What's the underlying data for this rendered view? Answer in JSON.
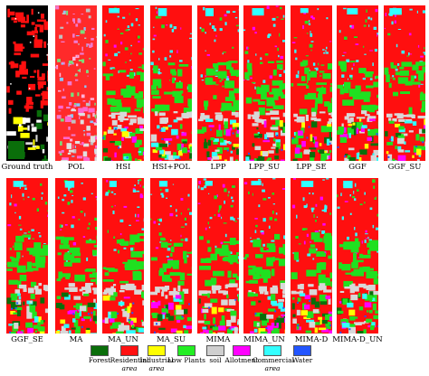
{
  "panels": [
    {
      "label": "Ground truth",
      "kind": "ground-truth"
    },
    {
      "label": "POL",
      "kind": "pol"
    },
    {
      "label": "HSI",
      "kind": "map"
    },
    {
      "label": "HSI+POL",
      "kind": "map"
    },
    {
      "label": "LPP",
      "kind": "map"
    },
    {
      "label": "LPP_SU",
      "kind": "map"
    },
    {
      "label": "LPP_SE",
      "kind": "map"
    },
    {
      "label": "GGF",
      "kind": "map"
    },
    {
      "label": "GGF_SU",
      "kind": "map"
    },
    {
      "label": "GGF_SE",
      "kind": "map"
    },
    {
      "label": "MA",
      "kind": "map"
    },
    {
      "label": "MA_UN",
      "kind": "map"
    },
    {
      "label": "MA_SU",
      "kind": "map"
    },
    {
      "label": "MIMA",
      "kind": "map"
    },
    {
      "label": "MIMA_UN",
      "kind": "map"
    },
    {
      "label": "MIMA-D",
      "kind": "map"
    },
    {
      "label": "MIMA-D_UN",
      "kind": "map"
    }
  ],
  "legend": [
    {
      "line1": "Forest",
      "line2": "",
      "color": "#0a6e0a"
    },
    {
      "line1": "Residential",
      "line2": "area",
      "color": "#ff1010"
    },
    {
      "line1": "Industrial",
      "line2": "area",
      "color": "#ffff00"
    },
    {
      "line1": "Low Plants",
      "line2": "",
      "color": "#22ee22"
    },
    {
      "line1": "soil",
      "line2": "",
      "color": "#cfcfcf"
    },
    {
      "line1": "Allotment",
      "line2": "",
      "color": "#ff00ff"
    },
    {
      "line1": "Commercial",
      "line2": "area",
      "color": "#33ffff"
    },
    {
      "line1": "Water",
      "line2": "",
      "color": "#2255ff"
    }
  ]
}
